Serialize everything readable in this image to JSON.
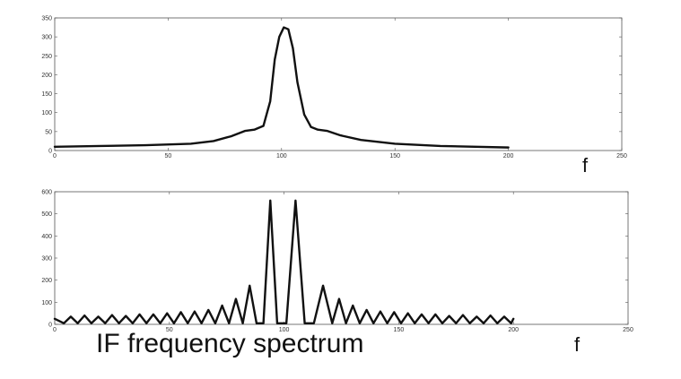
{
  "caption": "IF frequency spectrum",
  "colors": {
    "background": "#ffffff",
    "axes": "#555555",
    "curve": "#111111"
  },
  "chart_data": [
    {
      "type": "line",
      "xlim": [
        0,
        250
      ],
      "ylim": [
        0,
        350
      ],
      "xticks": [
        "0",
        "50",
        "100",
        "150",
        "200",
        "250"
      ],
      "yticks": [
        "0",
        "50",
        "100",
        "150",
        "200",
        "250",
        "300",
        "350"
      ],
      "x_variable_label": "f",
      "grid": false,
      "series": [
        {
          "x": [
            0,
            20,
            40,
            60,
            70,
            78,
            84,
            88,
            92,
            95,
            97,
            99,
            101,
            103,
            105,
            107,
            110,
            113,
            116,
            120,
            126,
            135,
            150,
            170,
            200
          ],
          "y": [
            10,
            12,
            14,
            18,
            25,
            38,
            52,
            55,
            65,
            130,
            240,
            300,
            325,
            320,
            270,
            180,
            95,
            62,
            55,
            52,
            40,
            28,
            18,
            12,
            8
          ]
        }
      ]
    },
    {
      "type": "line",
      "xlim": [
        0,
        250
      ],
      "ylim": [
        0,
        600
      ],
      "xticks": [
        "0",
        "50",
        "100",
        "150",
        "200",
        "250"
      ],
      "yticks": [
        "0",
        "100",
        "200",
        "300",
        "400",
        "500",
        "600"
      ],
      "x_variable_label": "f",
      "grid": false,
      "series": [
        {
          "x": [
            0,
            2,
            4,
            7,
            10,
            13,
            16,
            19,
            22,
            25,
            28,
            31,
            34,
            37,
            40,
            43,
            46,
            49,
            52,
            55,
            58,
            61,
            64,
            67,
            70,
            73,
            76,
            79,
            82,
            85,
            88,
            91,
            94,
            97,
            101,
            105,
            109,
            113,
            117,
            121,
            124,
            127,
            130,
            133,
            136,
            139,
            142,
            145,
            148,
            151,
            154,
            157,
            160,
            163,
            166,
            169,
            172,
            175,
            178,
            181,
            184,
            187,
            190,
            193,
            196,
            199,
            200
          ],
          "y": [
            25,
            15,
            5,
            35,
            5,
            40,
            5,
            35,
            5,
            42,
            5,
            38,
            5,
            45,
            5,
            45,
            5,
            50,
            5,
            55,
            5,
            58,
            5,
            65,
            5,
            85,
            5,
            115,
            5,
            175,
            5,
            5,
            560,
            5,
            5,
            560,
            5,
            5,
            175,
            5,
            115,
            5,
            85,
            5,
            65,
            5,
            58,
            5,
            55,
            5,
            50,
            5,
            45,
            5,
            45,
            5,
            38,
            5,
            42,
            5,
            35,
            5,
            40,
            5,
            35,
            5,
            25
          ]
        }
      ]
    }
  ]
}
